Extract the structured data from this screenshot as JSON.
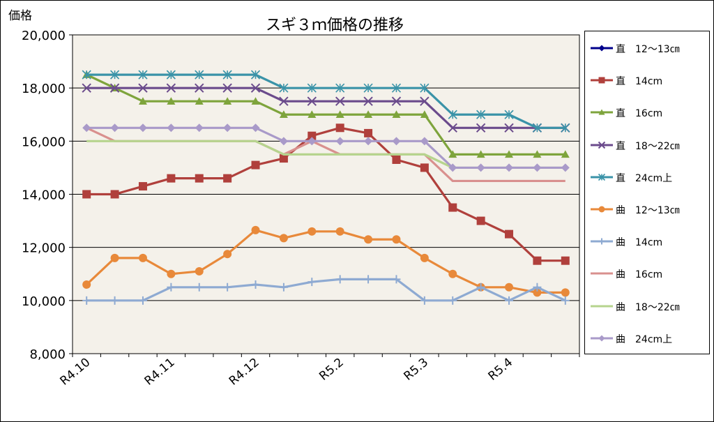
{
  "chart_data": {
    "type": "line",
    "title": "スギ３ｍ価格の推移",
    "ylabel": "価格",
    "xlabel": "",
    "ylim": [
      8000,
      20000
    ],
    "ytick_values": [
      8000,
      10000,
      12000,
      14000,
      16000,
      18000,
      20000
    ],
    "ytick_labels": [
      "8,000",
      "10,000",
      "12,000",
      "14,000",
      "16,000",
      "18,000",
      "20,000"
    ],
    "grid": true,
    "legend_position": "right",
    "categories": [
      "R4.10",
      "",
      "",
      "R4.11",
      "",
      "",
      "R4.12",
      "",
      "",
      "R5.2",
      "",
      "",
      "R5.3",
      "",
      "",
      "R5.4",
      "",
      ""
    ],
    "series": [
      {
        "name": "直　12～13㎝",
        "color": "#00008b",
        "marker": "diamond",
        "values": [
          null,
          null,
          null,
          null,
          null,
          null,
          null,
          null,
          null,
          null,
          null,
          null,
          null,
          null,
          null,
          null,
          null,
          null
        ]
      },
      {
        "name": "直　14cm",
        "color": "#b0403c",
        "marker": "square",
        "values": [
          14000,
          14000,
          14300,
          14600,
          14600,
          14600,
          15100,
          15350,
          16200,
          16500,
          16300,
          15300,
          15000,
          13500,
          13000,
          12500,
          11500,
          11500
        ]
      },
      {
        "name": "直　16cm",
        "color": "#7ea43c",
        "marker": "triangle",
        "values": [
          18500,
          18000,
          17500,
          17500,
          17500,
          17500,
          17500,
          17000,
          17000,
          17000,
          17000,
          17000,
          17000,
          15500,
          15500,
          15500,
          15500,
          15500
        ]
      },
      {
        "name": "直　18～22㎝",
        "color": "#6b4b8c",
        "marker": "x",
        "values": [
          18000,
          18000,
          18000,
          18000,
          18000,
          18000,
          18000,
          17500,
          17500,
          17500,
          17500,
          17500,
          17500,
          16500,
          16500,
          16500,
          16500,
          16500
        ]
      },
      {
        "name": "直　24cm上",
        "color": "#3a93a8",
        "marker": "star",
        "values": [
          18500,
          18500,
          18500,
          18500,
          18500,
          18500,
          18500,
          18000,
          18000,
          18000,
          18000,
          18000,
          18000,
          17000,
          17000,
          17000,
          16500,
          16500
        ]
      },
      {
        "name": "曲　12～13㎝",
        "color": "#e8893a",
        "marker": "circle",
        "values": [
          10600,
          11600,
          11600,
          11000,
          11100,
          11750,
          12650,
          12350,
          12600,
          12600,
          12300,
          12300,
          11600,
          11000,
          10500,
          10500,
          10300,
          10300
        ]
      },
      {
        "name": "曲　14cm",
        "color": "#8eaad2",
        "marker": "plus",
        "values": [
          10000,
          10000,
          10000,
          10500,
          10500,
          10500,
          10600,
          10500,
          10700,
          10800,
          10800,
          10800,
          10000,
          10000,
          10500,
          10000,
          10500,
          10000
        ]
      },
      {
        "name": "曲　16cm",
        "color": "#d9908e",
        "marker": "none",
        "values": [
          16500,
          16000,
          16000,
          16000,
          16000,
          16000,
          16000,
          15500,
          16000,
          15500,
          15500,
          15500,
          15500,
          14500,
          14500,
          14500,
          14500,
          14500
        ]
      },
      {
        "name": "曲　18～22㎝",
        "color": "#b6d48e",
        "marker": "none",
        "values": [
          16000,
          16000,
          16000,
          16000,
          16000,
          16000,
          16000,
          15500,
          15500,
          15500,
          15500,
          15500,
          15500,
          15000,
          15000,
          15000,
          15000,
          15000
        ]
      },
      {
        "name": "曲　24cm上",
        "color": "#a99ac9",
        "marker": "diamond",
        "values": [
          16500,
          16500,
          16500,
          16500,
          16500,
          16500,
          16500,
          16000,
          16000,
          16000,
          16000,
          16000,
          16000,
          15000,
          15000,
          15000,
          15000,
          15000
        ]
      }
    ]
  }
}
